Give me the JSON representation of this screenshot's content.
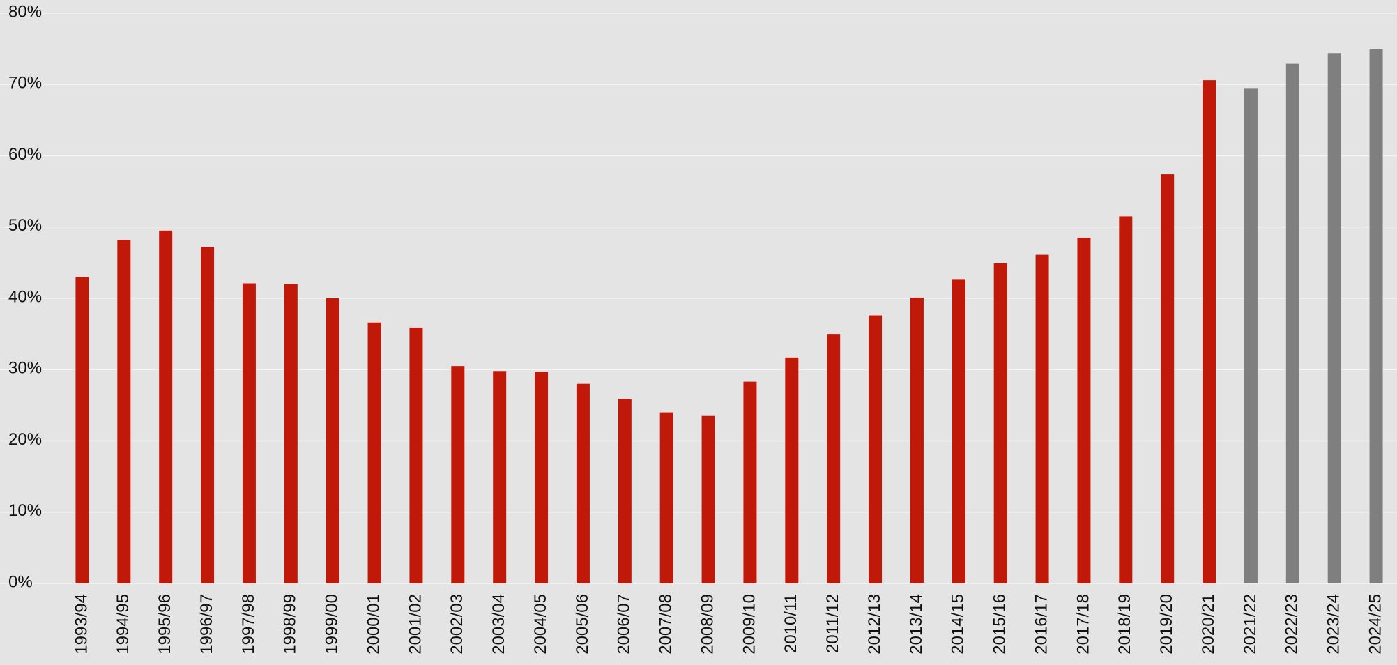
{
  "chart_data": {
    "type": "bar",
    "categories": [
      "1993/94",
      "1994/95",
      "1995/96",
      "1996/97",
      "1997/98",
      "1998/99",
      "1999/00",
      "2000/01",
      "2001/02",
      "2002/03",
      "2003/04",
      "2004/05",
      "2005/06",
      "2006/07",
      "2007/08",
      "2008/09",
      "2009/10",
      "2010/11",
      "2011/12",
      "2012/13",
      "2013/14",
      "2014/15",
      "2015/16",
      "2016/17",
      "2017/18",
      "2018/19",
      "2019/20",
      "2020/21",
      "2021/22",
      "2022/23",
      "2023/24",
      "2024/25"
    ],
    "values": [
      43.0,
      48.2,
      49.5,
      47.2,
      42.1,
      42.0,
      40.0,
      36.6,
      35.9,
      30.5,
      29.8,
      29.7,
      28.0,
      25.9,
      24.0,
      23.5,
      28.3,
      31.7,
      35.0,
      37.6,
      40.1,
      42.7,
      44.9,
      46.1,
      48.5,
      51.5,
      57.4,
      70.6,
      69.5,
      72.9,
      74.4,
      75.0
    ],
    "colors": [
      "#c0190a",
      "#c0190a",
      "#c0190a",
      "#c0190a",
      "#c0190a",
      "#c0190a",
      "#c0190a",
      "#c0190a",
      "#c0190a",
      "#c0190a",
      "#c0190a",
      "#c0190a",
      "#c0190a",
      "#c0190a",
      "#c0190a",
      "#c0190a",
      "#c0190a",
      "#c0190a",
      "#c0190a",
      "#c0190a",
      "#c0190a",
      "#c0190a",
      "#c0190a",
      "#c0190a",
      "#c0190a",
      "#c0190a",
      "#c0190a",
      "#c0190a",
      "#7f7f7f",
      "#7f7f7f",
      "#7f7f7f",
      "#7f7f7f"
    ],
    "ylim": [
      0,
      80
    ],
    "yticks": [
      {
        "value": 0,
        "label": "0%"
      },
      {
        "value": 10,
        "label": "10%"
      },
      {
        "value": 20,
        "label": "20%"
      },
      {
        "value": 30,
        "label": "30%"
      },
      {
        "value": 40,
        "label": "40%"
      },
      {
        "value": 50,
        "label": "50%"
      },
      {
        "value": 60,
        "label": "60%"
      },
      {
        "value": 70,
        "label": "70%"
      },
      {
        "value": 80,
        "label": "80%"
      }
    ],
    "grid": true
  }
}
